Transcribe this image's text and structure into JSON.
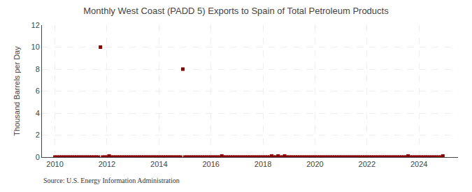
{
  "chart_data": {
    "type": "scatter",
    "title": "Monthly West Coast (PADD 5) Exports to Spain of Total Petroleum Products",
    "ylabel": "Thousand Barrels per Day",
    "annotations": [
      "Source: U.S. Energy Information Administration"
    ],
    "color": "#8b0000",
    "marker": "square",
    "grid": true,
    "xlim": [
      2009.5,
      2025.5
    ],
    "xticks": [
      2010,
      2012,
      2014,
      2016,
      2018,
      2020,
      2022,
      2024
    ],
    "ylim": [
      0,
      12
    ],
    "yticks": [
      0,
      2,
      4,
      6,
      8,
      10,
      12
    ],
    "x": [
      2010.0,
      2010.083,
      2010.167,
      2010.25,
      2010.333,
      2010.417,
      2010.5,
      2010.583,
      2010.667,
      2010.75,
      2010.833,
      2010.917,
      2011.0,
      2011.083,
      2011.167,
      2011.25,
      2011.333,
      2011.417,
      2011.5,
      2011.583,
      2011.667,
      2011.75,
      2011.833,
      2011.917,
      2012.0,
      2012.083,
      2012.167,
      2012.25,
      2012.333,
      2012.417,
      2012.5,
      2012.583,
      2012.667,
      2012.75,
      2012.833,
      2012.917,
      2013.0,
      2013.083,
      2013.167,
      2013.25,
      2013.333,
      2013.417,
      2013.5,
      2013.583,
      2013.667,
      2013.75,
      2013.833,
      2013.917,
      2014.0,
      2014.083,
      2014.167,
      2014.25,
      2014.333,
      2014.417,
      2014.5,
      2014.583,
      2014.667,
      2014.75,
      2014.833,
      2014.917,
      2015.0,
      2015.083,
      2015.167,
      2015.25,
      2015.333,
      2015.417,
      2015.5,
      2015.583,
      2015.667,
      2015.75,
      2015.833,
      2015.917,
      2016.0,
      2016.083,
      2016.167,
      2016.25,
      2016.333,
      2016.417,
      2016.5,
      2016.583,
      2016.667,
      2016.75,
      2016.833,
      2016.917,
      2017.0,
      2017.083,
      2017.167,
      2017.25,
      2017.333,
      2017.417,
      2017.5,
      2017.583,
      2017.667,
      2017.75,
      2017.833,
      2017.917,
      2018.0,
      2018.083,
      2018.167,
      2018.25,
      2018.333,
      2018.417,
      2018.5,
      2018.583,
      2018.667,
      2018.75,
      2018.833,
      2018.917,
      2019.0,
      2019.083,
      2019.167,
      2019.25,
      2019.333,
      2019.417,
      2019.5,
      2019.583,
      2019.667,
      2019.75,
      2019.833,
      2019.917,
      2020.0,
      2020.083,
      2020.167,
      2020.25,
      2020.333,
      2020.417,
      2020.5,
      2020.583,
      2020.667,
      2020.75,
      2020.833,
      2020.917,
      2021.0,
      2021.083,
      2021.167,
      2021.25,
      2021.333,
      2021.417,
      2021.5,
      2021.583,
      2021.667,
      2021.75,
      2021.833,
      2021.917,
      2022.0,
      2022.083,
      2022.167,
      2022.25,
      2022.333,
      2022.417,
      2022.5,
      2022.583,
      2022.667,
      2022.75,
      2022.833,
      2022.917,
      2023.0,
      2023.083,
      2023.167,
      2023.25,
      2023.333,
      2023.417,
      2023.5,
      2023.583,
      2023.667,
      2023.75,
      2023.833,
      2023.917,
      2024.0,
      2024.083,
      2024.167,
      2024.25,
      2024.333,
      2024.417,
      2024.5,
      2024.583,
      2024.667,
      2024.75,
      2024.833,
      2024.917
    ],
    "values": [
      0,
      0,
      0,
      0,
      0,
      0,
      0,
      0,
      0,
      0,
      0,
      0,
      0,
      0,
      0,
      0,
      0,
      0,
      0,
      0,
      0,
      10.0,
      0,
      0,
      0,
      0.1,
      0,
      0,
      0,
      0,
      0,
      0,
      0,
      0,
      0,
      0,
      0,
      0,
      0,
      0,
      0,
      0,
      0,
      0,
      0,
      0,
      0,
      0,
      0,
      0,
      0,
      0,
      0,
      0,
      0,
      0,
      0,
      0,
      0,
      8.0,
      0,
      0,
      0,
      0,
      0,
      0,
      0,
      0,
      0,
      0,
      0,
      0,
      0,
      0,
      0,
      0,
      0,
      0.1,
      0,
      0,
      0,
      0,
      0,
      0,
      0,
      0,
      0,
      0,
      0,
      0,
      0,
      0,
      0,
      0,
      0,
      0,
      0,
      0,
      0,
      0,
      0.1,
      0,
      0,
      0.1,
      0,
      0,
      0.1,
      0,
      0,
      0,
      0,
      0,
      0,
      0,
      0,
      0,
      0,
      0,
      0,
      0,
      0,
      0,
      0,
      0,
      0,
      0,
      0,
      0,
      0,
      0,
      0,
      0,
      0,
      0,
      0,
      0,
      0,
      0,
      0,
      0,
      0,
      0,
      0,
      0,
      0,
      0,
      0,
      0,
      0,
      0,
      0,
      0,
      0,
      0,
      0,
      0,
      0,
      0,
      0,
      0,
      0,
      0,
      0,
      0.1,
      0,
      0,
      0,
      0,
      0,
      0,
      0,
      0,
      0,
      0,
      0,
      0,
      0,
      0,
      0,
      0.1
    ]
  }
}
